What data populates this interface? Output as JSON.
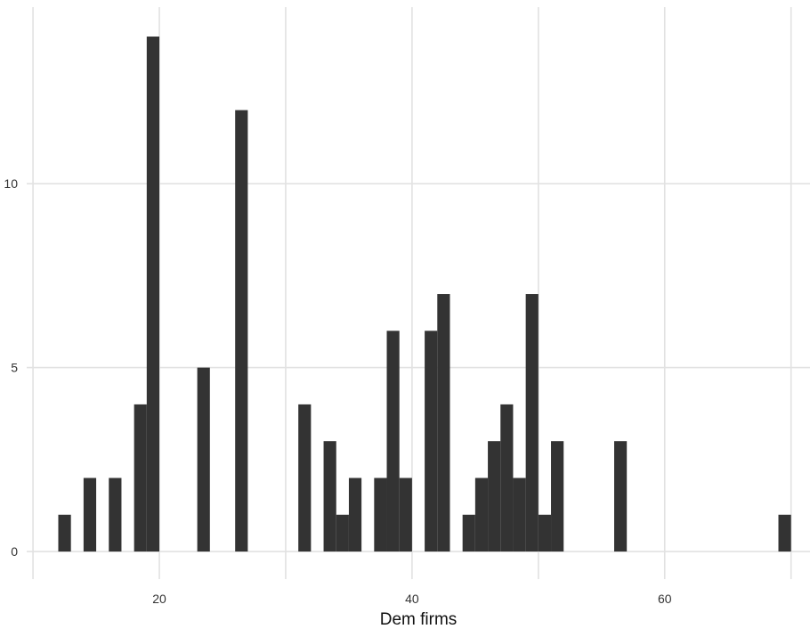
{
  "chart_data": {
    "type": "bar",
    "subtype": "histogram",
    "xlabel": "Dem firms",
    "ylabel": "",
    "xlim": [
      9.5,
      71.5
    ],
    "ylim": [
      -0.75,
      14.8
    ],
    "x_ticks": [
      20,
      40,
      60
    ],
    "y_ticks": [
      0,
      5,
      10
    ],
    "x_tick_labels": [
      "20",
      "40",
      "60"
    ],
    "y_tick_labels": [
      "0",
      "5",
      "10"
    ],
    "grid": true,
    "bin_width": 1,
    "bar_color": "#333333",
    "bins": [
      {
        "x": 12.5,
        "count": 1
      },
      {
        "x": 14.5,
        "count": 2
      },
      {
        "x": 16.5,
        "count": 2
      },
      {
        "x": 18.5,
        "count": 4
      },
      {
        "x": 19.5,
        "count": 14
      },
      {
        "x": 23.5,
        "count": 5
      },
      {
        "x": 26.5,
        "count": 12
      },
      {
        "x": 31.5,
        "count": 4
      },
      {
        "x": 33.5,
        "count": 3
      },
      {
        "x": 34.5,
        "count": 1
      },
      {
        "x": 35.5,
        "count": 2
      },
      {
        "x": 37.5,
        "count": 2
      },
      {
        "x": 38.5,
        "count": 6
      },
      {
        "x": 39.5,
        "count": 2
      },
      {
        "x": 41.5,
        "count": 6
      },
      {
        "x": 42.5,
        "count": 7
      },
      {
        "x": 44.5,
        "count": 1
      },
      {
        "x": 45.5,
        "count": 2
      },
      {
        "x": 46.5,
        "count": 3
      },
      {
        "x": 47.5,
        "count": 4
      },
      {
        "x": 48.5,
        "count": 2
      },
      {
        "x": 49.5,
        "count": 7
      },
      {
        "x": 50.5,
        "count": 1
      },
      {
        "x": 51.5,
        "count": 3
      },
      {
        "x": 56.5,
        "count": 3
      },
      {
        "x": 69.5,
        "count": 1
      }
    ]
  }
}
